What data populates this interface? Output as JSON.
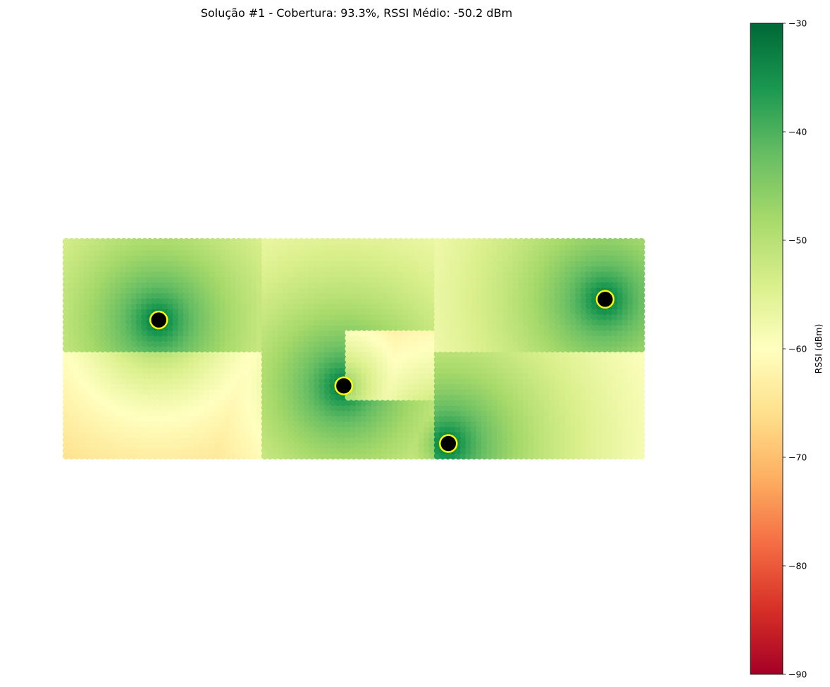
{
  "figure": {
    "title": "Solução #1 - Cobertura: 93.3%, RSSI Médio: -50.2 dBm"
  },
  "chart_data": {
    "type": "heatmap",
    "title": "Solução #1 - Cobertura: 93.3%, RSSI Médio: -50.2 dBm",
    "xlabel": "",
    "ylabel": "",
    "axis_visible": false,
    "grid": false,
    "colormap": "RdYlGn",
    "colorbar": {
      "label": "RSSI (dBm)",
      "vmin": -90,
      "vmax": -30,
      "ticks": [
        -30,
        -40,
        -50,
        -60,
        -70,
        -80,
        -90
      ],
      "tick_labels": [
        "−30",
        "−40",
        "−50",
        "−60",
        "−70",
        "−80",
        "−90"
      ]
    },
    "coverage_percent": 93.3,
    "mean_rssi_dbm": -50.2,
    "access_points": [
      {
        "x": 11.5,
        "y": 16.5
      },
      {
        "x": 34.5,
        "y": 8.5
      },
      {
        "x": 47.5,
        "y": 1.5
      },
      {
        "x": 67.0,
        "y": 19.0
      }
    ],
    "access_point_style": {
      "fill": "#000000",
      "edge": "#ffff00"
    },
    "rooms": [
      {
        "x": [
          0,
          24
        ],
        "y": [
          13,
          26
        ]
      },
      {
        "x": [
          0,
          24
        ],
        "y": [
          0,
          13
        ]
      },
      {
        "x": [
          25,
          46
        ],
        "y": [
          0,
          26
        ]
      },
      {
        "x": [
          46,
          72
        ],
        "y": [
          13,
          26
        ]
      },
      {
        "x": [
          35,
          46
        ],
        "y": [
          7,
          15
        ]
      },
      {
        "x": [
          46,
          72
        ],
        "y": [
          0,
          13
        ]
      }
    ]
  }
}
